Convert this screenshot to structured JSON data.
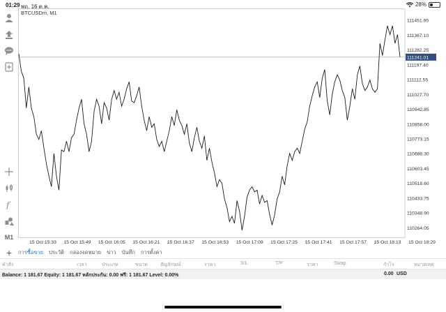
{
  "status_bar": {
    "time": "01:29",
    "date": "พฤ. 16 ต.ค.",
    "battery": "28%",
    "battery_fraction": 0.28
  },
  "chart": {
    "symbol": "BTCUSDm, M1",
    "current_price": "111241.01",
    "colors": {
      "line": "#1a1a1a",
      "grid": "#e3e3e3",
      "price_label_bg": "#2f4f7f",
      "price_line": "#999999"
    }
  },
  "chart_data": {
    "type": "line",
    "title": "BTCUSDm, M1",
    "ylim": [
      110210,
      111520
    ],
    "y_ticks": [
      111451.95,
      111367.1,
      111282.25,
      111197.4,
      111112.55,
      111027.7,
      110942.85,
      110858.0,
      110773.15,
      110688.3,
      110603.45,
      110518.6,
      110433.75,
      110348.9,
      110264.05
    ],
    "y_tick_labels": [
      "111451.95",
      "111367.10",
      "111282.25",
      "111197.40",
      "111112.55",
      "111027.70",
      "110942.85",
      "110858.00",
      "110773.15",
      "110688.30",
      "110603.45",
      "110518.60",
      "110433.75",
      "110348.90",
      "110264.05"
    ],
    "x_labels": [
      "15 Oct 15:33",
      "15 Oct 15:49",
      "15 Oct 16:05",
      "15 Oct 16:21",
      "15 Oct 16:37",
      "15 Oct 16:53",
      "15 Oct 17:09",
      "15 Oct 17:25",
      "15 Oct 17:41",
      "15 Oct 17:57",
      "15 Oct 18:13",
      "15 Oct 18:29"
    ],
    "series": [
      {
        "values": [
          111260,
          111160,
          111120,
          110950,
          111070,
          110950,
          110900,
          110800,
          110770,
          110820,
          110720,
          110630,
          110560,
          110500,
          110690,
          110560,
          110480,
          110710,
          110700,
          110760,
          110700,
          110780,
          110800,
          110880,
          110950,
          111000,
          110860,
          110800,
          110700,
          110760,
          110930,
          111000,
          110960,
          110860,
          110980,
          110950,
          110880,
          111000,
          111050,
          111000,
          111040,
          110960,
          111000,
          111060,
          111100,
          110990,
          110980,
          111020,
          111070,
          110960,
          110880,
          110820,
          110900,
          110840,
          110860,
          110770,
          110730,
          110760,
          110700,
          110760,
          110820,
          110900,
          110850,
          110940,
          110880,
          110850,
          110800,
          110860,
          110750,
          110700,
          110780,
          110840,
          110760,
          110720,
          110790,
          110650,
          110720,
          110640,
          110580,
          110500,
          110540,
          110520,
          110430,
          110380,
          110300,
          110330,
          110290,
          110420,
          110360,
          110250,
          110330,
          110440,
          110480,
          110500,
          110470,
          110480,
          110400,
          110450,
          110410,
          110420,
          110340,
          110280,
          110340,
          110430,
          110470,
          110560,
          110510,
          110620,
          110690,
          110650,
          110700,
          110720,
          110690,
          110760,
          110830,
          110870,
          110960,
          111020,
          111070,
          111100,
          111010,
          111120,
          111170,
          110990,
          110910,
          111030,
          111100,
          111140,
          111110,
          111050,
          111010,
          110880,
          110960,
          111060,
          111000,
          111140,
          111190,
          111090,
          111050,
          111070,
          111110,
          111060,
          111040,
          111060,
          111320,
          111250,
          111340,
          111420,
          111370,
          111420,
          111320,
          111370,
          111241
        ]
      }
    ]
  },
  "toolbar": {
    "tools": [
      "user-icon",
      "upload-icon",
      "chat-icon",
      "new-document-icon",
      "crosshair-icon",
      "candles-icon",
      "function-icon",
      "objects-icon"
    ],
    "timeframe": "M1"
  },
  "tabs": {
    "add": "+",
    "items": [
      {
        "label": "การซื้อขาย",
        "active": true
      },
      {
        "label": "ประวัติ",
        "active": false
      },
      {
        "label": "กล่องจดหมาย",
        "active": false
      },
      {
        "label": "ข่าว",
        "active": false
      },
      {
        "label": "บันทึก",
        "active": false
      },
      {
        "label": "การตั้งค่า",
        "active": false
      }
    ]
  },
  "table": {
    "columns": [
      "คำสั่ง",
      "เวลา",
      "ประเภท",
      "ขนาด",
      "สัญลักษณ์",
      "ราคา",
      "S/L",
      "T/P",
      "ราคา",
      "Swap",
      "กำไร",
      "หมายเหตุ"
    ]
  },
  "balance": {
    "text": "Balance: 1 181.67 Equity: 1 181.67 หลักประกัน: 0.00 ฟรี: 1 181.67 Level: 0.00%",
    "profit": "0.00",
    "currency": "USD"
  }
}
